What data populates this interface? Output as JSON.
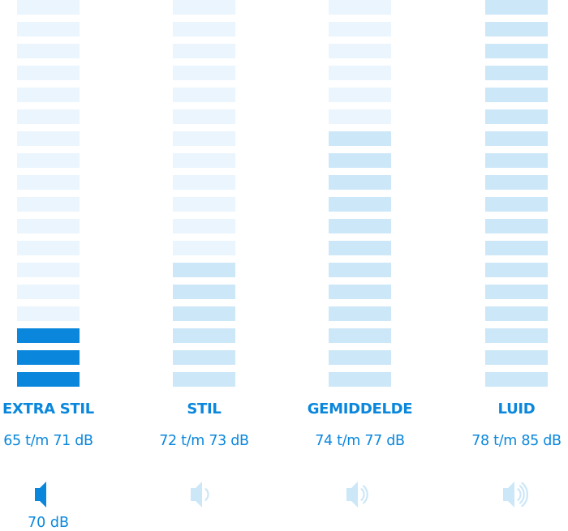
{
  "total_bars": 18,
  "colors": {
    "active": "#0a87dc",
    "level": "#cce7f8",
    "empty": "#eaf5fd",
    "text": "#0a87dc",
    "inactive_icon": "#cce7f8"
  },
  "columns": [
    {
      "label": "EXTRA STIL",
      "range": "65 t/m 71 dB",
      "filled_bars": 3,
      "active": true,
      "icon": "speaker-mute-icon",
      "waves": 0,
      "current": "70 dB"
    },
    {
      "label": "STIL",
      "range": "72 t/m 73 dB",
      "filled_bars": 6,
      "active": false,
      "icon": "speaker-low-icon",
      "waves": 1
    },
    {
      "label": "GEMIDDELDE",
      "range": "74 t/m 77 dB",
      "filled_bars": 12,
      "active": false,
      "icon": "speaker-medium-icon",
      "waves": 2
    },
    {
      "label": "LUID",
      "range": "78 t/m 85 dB",
      "filled_bars": 18,
      "active": false,
      "icon": "speaker-high-icon",
      "waves": 3
    }
  ]
}
